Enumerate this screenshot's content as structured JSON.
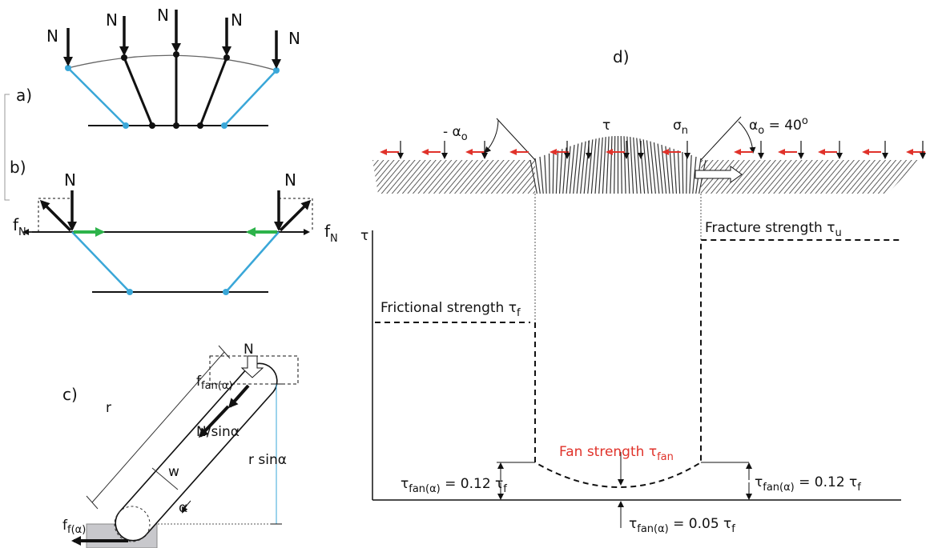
{
  "panel_a": {
    "label": "a)",
    "forces": [
      "N",
      "N",
      "N",
      "N",
      "N"
    ]
  },
  "panel_b": {
    "label": "b)",
    "forces": [
      "N",
      "N"
    ],
    "friction_left": {
      "base": "f",
      "subscript": "N"
    },
    "friction_right": {
      "base": "f",
      "subscript": "N"
    }
  },
  "panel_c": {
    "label": "c)",
    "force": "N",
    "fan_force": {
      "base": "f",
      "subscript": "fan(α)"
    },
    "normal_component": "N/sinα",
    "length": "r",
    "width": "w",
    "height": "r sinα",
    "angle": "α",
    "base_force": {
      "base": "f",
      "subscript": "f(α)"
    }
  },
  "panel_d": {
    "label": "d)",
    "negative_angle": {
      "base": "- α",
      "subscript": "o"
    },
    "shear": "τ",
    "normal_stress": {
      "base": "σ",
      "subscript": "n"
    },
    "positive_angle": {
      "base": "α",
      "subscript": "o",
      "rest": " = 40",
      "superscript": "o"
    },
    "y_axis": "τ",
    "fracture": {
      "base": "Fracture strength τ",
      "subscript": "u"
    },
    "friction": {
      "base": "Frictional strength τ",
      "subscript": "f"
    },
    "fan": {
      "base": "Fan strength τ",
      "subscript": "fan"
    },
    "fan_left": {
      "base": "τ",
      "subscript": "fan(α)",
      "rest": " = 0.12 τ",
      "subscript2": "f"
    },
    "fan_right": {
      "base": "τ",
      "subscript": "fan(α)",
      "rest": " = 0.12 τ",
      "subscript2": "f"
    },
    "fan_min": {
      "base": "τ",
      "subscript": "fan(α)",
      "rest": " = 0.05 τ",
      "subscript2": "f"
    }
  }
}
